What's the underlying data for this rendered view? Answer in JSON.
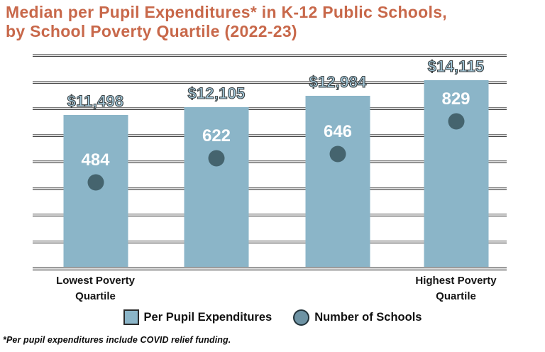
{
  "title": {
    "line1": "Median per Pupil Expenditures* in K-12 Public Schools,",
    "line2": "by School Poverty Quartile (2022-23)"
  },
  "footnote": "*Per pupil expenditures include COVID relief funding.",
  "legend": {
    "bar_label": "Per Pupil Expenditures",
    "dot_label": "Number of Schools"
  },
  "colors": {
    "title": "#c8684a",
    "bar_fill": "#8bb5c8",
    "bar_value_text": "#a6cbdd",
    "dot_fill": "#45646e",
    "legend_circle": "#6e93a4",
    "gridline": "#d9d9d9",
    "background": "#ffffff",
    "axis_text": "#141414"
  },
  "chart_data": {
    "type": "bar",
    "title": "Median per Pupil Expenditures* in K-12 Public Schools, by School Poverty Quartile (2022-23)",
    "categories": [
      "Lowest Poverty Quartile",
      "",
      "",
      "Highest Poverty Quartile"
    ],
    "series": [
      {
        "name": "Per Pupil Expenditures",
        "type": "bar",
        "axis": "left",
        "values": [
          11498,
          12105,
          12984,
          14115
        ],
        "labels": [
          "$11,498",
          "$12,105",
          "$12,984",
          "$14,115"
        ]
      },
      {
        "name": "Number of Schools",
        "type": "point",
        "axis": "right",
        "values": [
          484,
          622,
          646,
          829
        ],
        "labels": [
          "484",
          "622",
          "646",
          "829"
        ]
      }
    ],
    "left_axis": {
      "min": 0,
      "max": 16000,
      "step": 2000,
      "ticks": [
        "$0K",
        "$2K",
        "$4K",
        "$6K",
        "$8K",
        "$10K",
        "$12K",
        "$14K",
        "$16K"
      ]
    },
    "right_axis": {
      "min": 0,
      "max": 1200,
      "step": 200,
      "ticks": [
        "0",
        "200",
        "400",
        "600",
        "800",
        "1,000",
        "1,200"
      ]
    },
    "x_tick_labels": [
      {
        "index": 0,
        "lines": [
          "Lowest Poverty",
          "Quartile"
        ]
      },
      {
        "index": 3,
        "lines": [
          "Highest Poverty",
          "Quartile"
        ]
      }
    ],
    "grid": true,
    "legend_position": "bottom"
  }
}
